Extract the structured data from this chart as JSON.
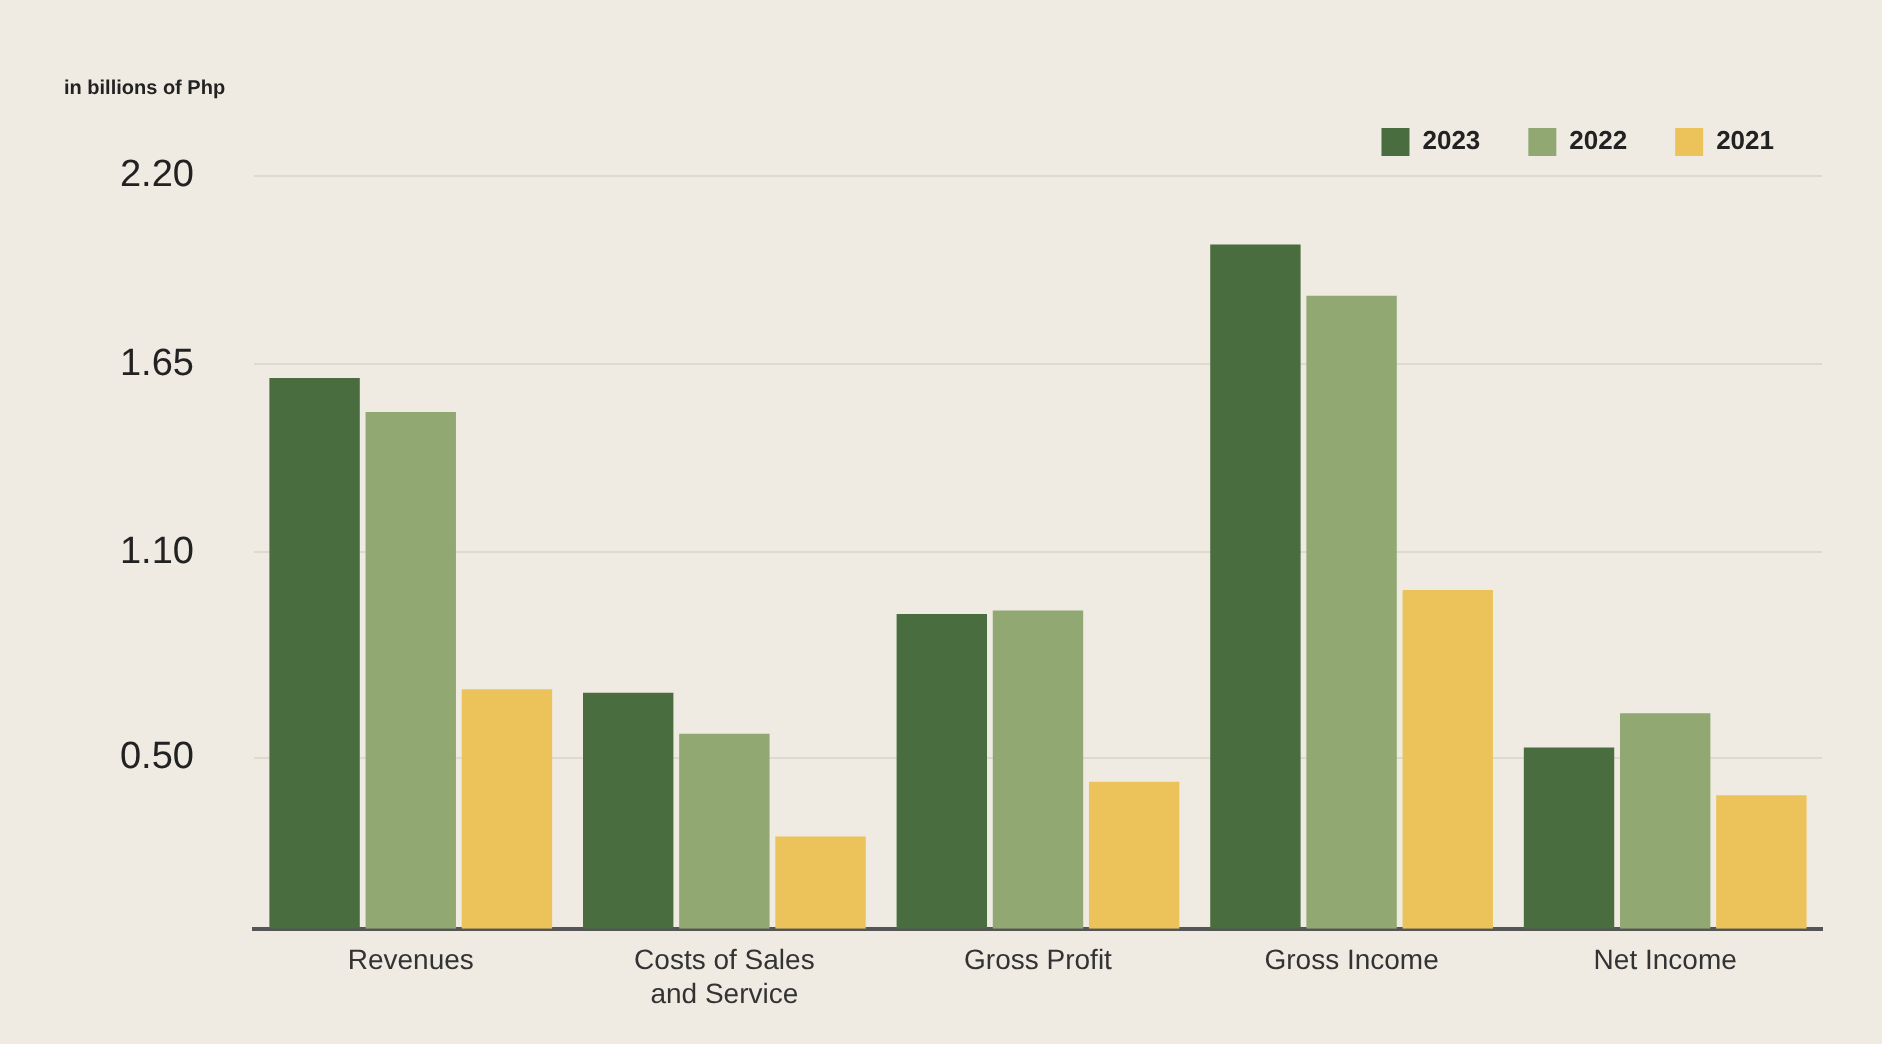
{
  "chart_data": {
    "type": "bar",
    "ylabel": "in billions of Php",
    "categories": [
      "Revenues",
      [
        "Costs of Sales",
        "and Service"
      ],
      "Gross Profit",
      "Gross Income",
      "Net Income"
    ],
    "series": [
      {
        "name": "2023",
        "color": "#4a6d3f",
        "values": [
          1.61,
          0.69,
          0.92,
          2.0,
          0.53
        ]
      },
      {
        "name": "2022",
        "color": "#91a872",
        "values": [
          1.51,
          0.57,
          0.93,
          1.85,
          0.63
        ]
      },
      {
        "name": "2021",
        "color": "#ebc35a",
        "values": [
          0.7,
          0.27,
          0.43,
          0.99,
          0.39
        ]
      }
    ],
    "ylim": [
      0,
      2.2
    ],
    "yticks": [
      {
        "value": 0.5,
        "label": "0.50"
      },
      {
        "value": 1.1,
        "label": "1.10"
      },
      {
        "value": 1.65,
        "label": "1.65"
      },
      {
        "value": 2.2,
        "label": "2.20"
      }
    ],
    "grid": "y",
    "legend": "top right"
  }
}
